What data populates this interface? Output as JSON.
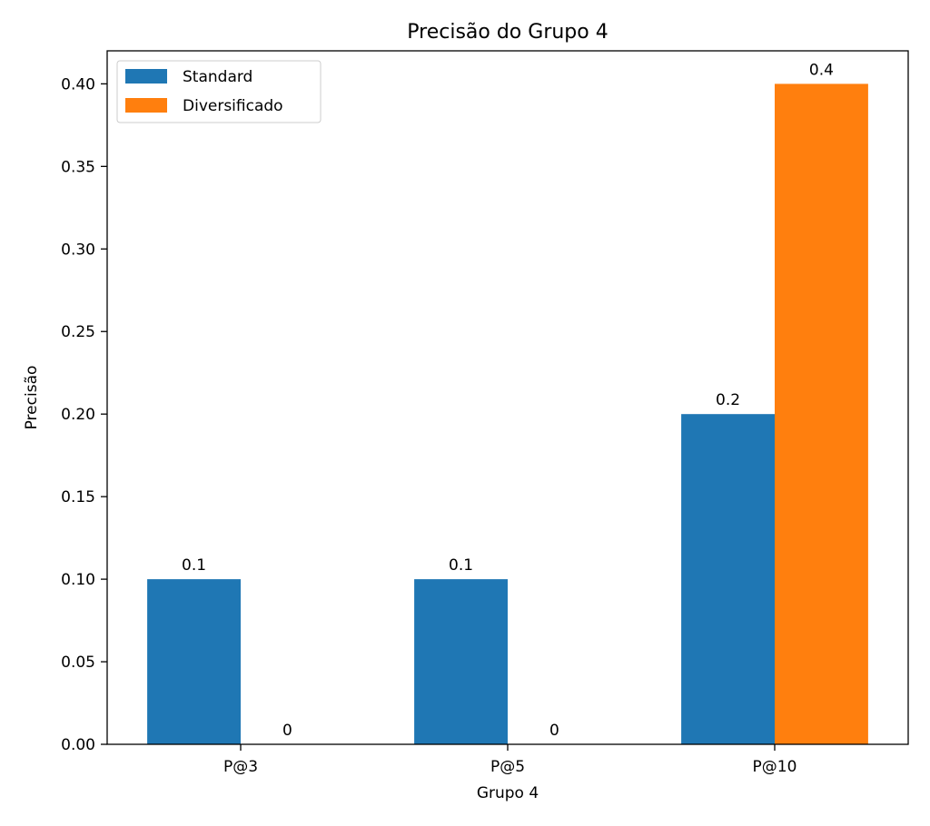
{
  "chart_data": {
    "type": "bar",
    "title": "Precisão do Grupo 4",
    "xlabel": "Grupo 4",
    "ylabel": "Precisão",
    "categories": [
      "P@3",
      "P@5",
      "P@10"
    ],
    "series": [
      {
        "name": "Standard",
        "values": [
          0.1,
          0.1,
          0.2
        ],
        "labels": [
          "0.1",
          "0.1",
          "0.2"
        ],
        "color": "#1f77b4"
      },
      {
        "name": "Diversificado",
        "values": [
          0,
          0,
          0.4
        ],
        "labels": [
          "0",
          "0",
          "0.4"
        ],
        "color": "#ff7f0e"
      }
    ],
    "ylim": [
      0,
      0.42
    ],
    "yticks": [
      0.0,
      0.05,
      0.1,
      0.15,
      0.2,
      0.25,
      0.3,
      0.35,
      0.4
    ],
    "ytick_labels": [
      "0.00",
      "0.05",
      "0.10",
      "0.15",
      "0.20",
      "0.25",
      "0.30",
      "0.35",
      "0.40"
    ],
    "legend_position": "top-left",
    "grid": false
  }
}
